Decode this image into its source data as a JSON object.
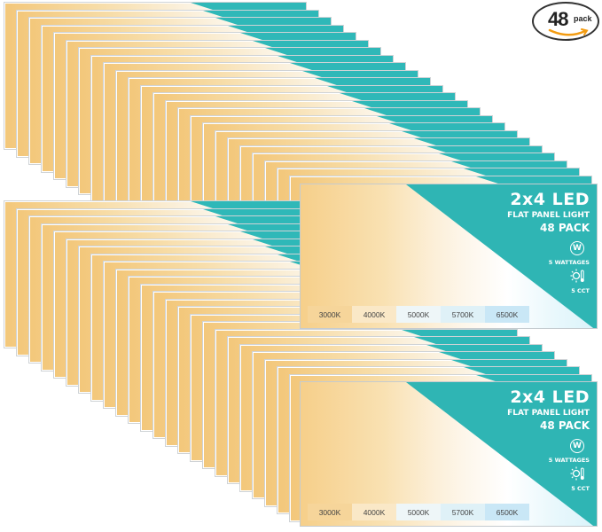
{
  "badge": {
    "count": "48",
    "unit": "pack",
    "accent_color": "#f39c12"
  },
  "panel_label": {
    "title": "2x4 LED",
    "subtitle": "FLAT PANEL LIGHT",
    "pack": "48 PACK",
    "wattage_icon_letter": "W",
    "wattage_text": "5 WATTAGES",
    "cct_text": "5 CCT",
    "cct_icon": "sun-thermometer-icon"
  },
  "color_temperatures": [
    {
      "label": "3000K",
      "color": "#f6d59a"
    },
    {
      "label": "4000K",
      "color": "#fae8c7"
    },
    {
      "label": "5000K",
      "color": "#eef6f8"
    },
    {
      "label": "5700K",
      "color": "#dff1f7"
    },
    {
      "label": "6500K",
      "color": "#c9e7f6"
    }
  ],
  "brand_color": "#2fb5b4"
}
